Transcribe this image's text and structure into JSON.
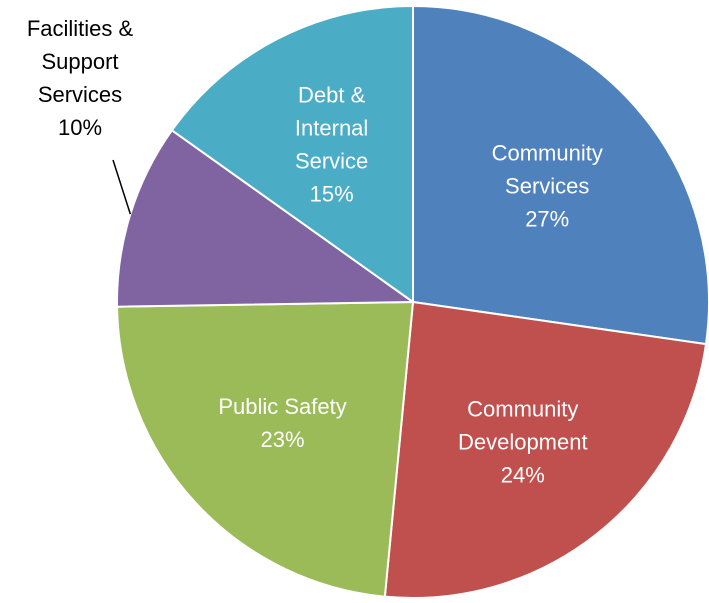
{
  "chart_data": {
    "type": "pie",
    "title": "",
    "start_angle_deg": 0,
    "direction": "clockwise",
    "slices": [
      {
        "label": [
          "Community",
          "Services"
        ],
        "value": 27,
        "display": "27%",
        "color": "#4F81BD",
        "label_position": "inside"
      },
      {
        "label": [
          "Community",
          "Development"
        ],
        "value": 24,
        "display": "24%",
        "color": "#C0504D",
        "label_position": "inside"
      },
      {
        "label": [
          "Public Safety"
        ],
        "value": 23,
        "display": "23%",
        "color": "#9BBB59",
        "label_position": "inside"
      },
      {
        "label": [
          "Facilities &",
          "Support",
          "Services"
        ],
        "value": 10,
        "display": "10%",
        "color": "#8064A2",
        "label_position": "outside"
      },
      {
        "label": [
          "Debt &",
          "Internal",
          "Service"
        ],
        "value": 15,
        "display": "15%",
        "color": "#4BACC6",
        "label_position": "inside"
      }
    ]
  }
}
